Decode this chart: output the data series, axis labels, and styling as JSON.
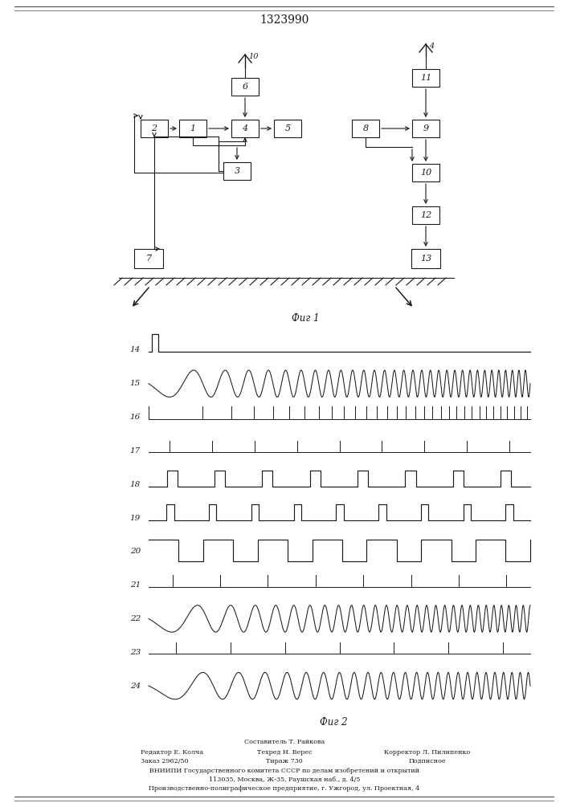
{
  "title": "1323990",
  "fig1_label": "Фиг 1",
  "fig2_label": "Фиг 2",
  "bg_color": "#ffffff",
  "line_color": "#1a1a1a",
  "box_color": "#ffffff",
  "signal_labels": [
    "14",
    "15",
    "16",
    "17",
    "18",
    "19",
    "20",
    "21",
    "22",
    "23",
    "24"
  ],
  "footer_line0": "Составитель Т. Райкова",
  "footer_col1_r1": "Редактор Е. Колча",
  "footer_col1_r2": "Заказ 2962/50",
  "footer_col2_r1": "Техред Н. Верес",
  "footer_col2_r2": "Тираж 730",
  "footer_col3_r1": "Корректор Л. Пилипенко",
  "footer_col3_r2": "Подписное",
  "footer_line3": "ВНИИПИ Государственного комитета СССР по делам изобретений и открытий",
  "footer_line4": "113035, Москва, Ж-35, Раушская наб., д. 4/5",
  "footer_line5": "Производственно-полиграфическое предприятие, г. Ужгород, ул. Проектная, 4"
}
